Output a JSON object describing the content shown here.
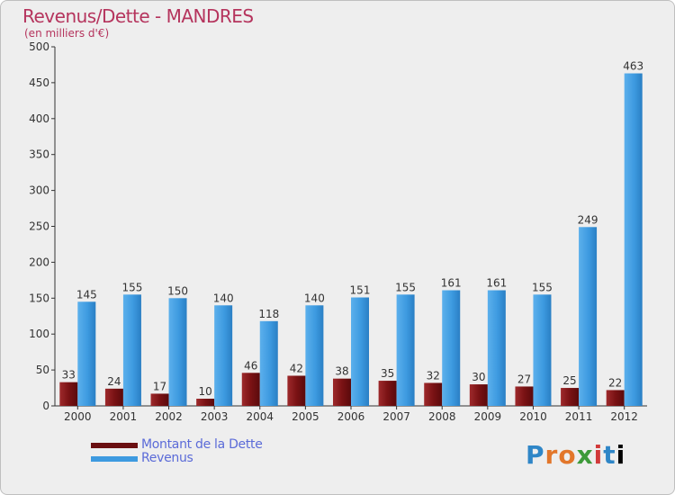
{
  "chart_data": {
    "type": "bar",
    "title": "Revenus/Dette - MANDRES",
    "subtitle": "(en milliers d'€)",
    "categories": [
      "2000",
      "2001",
      "2002",
      "2003",
      "2004",
      "2005",
      "2006",
      "2007",
      "2008",
      "2009",
      "2010",
      "2011",
      "2012"
    ],
    "series": [
      {
        "name": "Montant de la Dette",
        "color": "#7a1214",
        "values": [
          33,
          24,
          17,
          10,
          46,
          42,
          38,
          35,
          32,
          30,
          27,
          25,
          22
        ]
      },
      {
        "name": "Revenus",
        "color": "#3d9ae0",
        "values": [
          145,
          155,
          150,
          140,
          118,
          140,
          151,
          155,
          161,
          161,
          155,
          249,
          463
        ]
      }
    ],
    "ylim": [
      0,
      500
    ],
    "yticks": [
      0,
      50,
      100,
      150,
      200,
      250,
      300,
      350,
      400,
      450,
      500
    ],
    "grid": false,
    "legend": "bottom-left"
  },
  "logo": {
    "text": "Proxiti"
  }
}
